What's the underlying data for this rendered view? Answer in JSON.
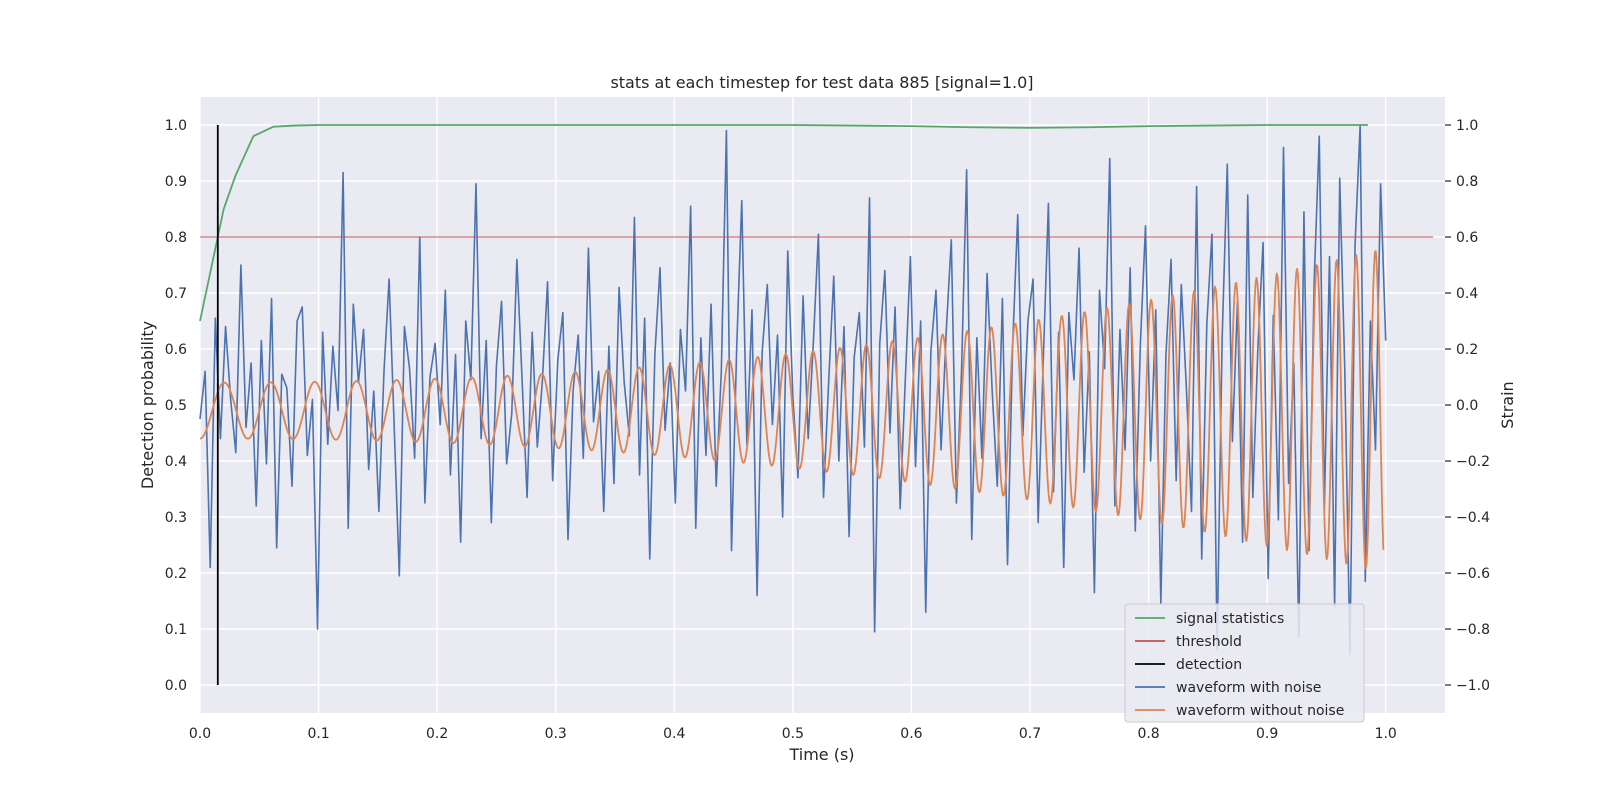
{
  "chart_data": {
    "type": "line",
    "title": "stats at each timestep for test data 885 [signal=1.0]",
    "xlabel": "Time (s)",
    "ylabel_left": "Detection probability",
    "ylabel_right": "Strain",
    "xlim": [
      0.0,
      1.05
    ],
    "ylim_left": [
      -0.05,
      1.05
    ],
    "ylim_right": [
      -1.1,
      1.1
    ],
    "x_ticks": [
      "0.0",
      "0.1",
      "0.2",
      "0.3",
      "0.4",
      "0.5",
      "0.6",
      "0.7",
      "0.8",
      "0.9",
      "1.0"
    ],
    "y_ticks_left": [
      "0.0",
      "0.1",
      "0.2",
      "0.3",
      "0.4",
      "0.5",
      "0.6",
      "0.7",
      "0.8",
      "0.9",
      "1.0"
    ],
    "y_ticks_right": [
      "−1.0",
      "−0.8",
      "−0.6",
      "−0.4",
      "−0.2",
      "0.0",
      "0.2",
      "0.4",
      "0.6",
      "0.8",
      "1.0"
    ],
    "grid": true,
    "legend_position": "lower-right",
    "threshold": 0.8,
    "detection_time": 0.015,
    "colors": {
      "signal_statistics": "#55a868",
      "threshold": "#c44e52",
      "detection": "#000000",
      "waveform_with_noise": "#4c72b0",
      "waveform_without_noise": "#dd8452"
    },
    "series": [
      {
        "name": "signal statistics",
        "axis": "left",
        "x": [
          0.0,
          0.005,
          0.01,
          0.015,
          0.02,
          0.025,
          0.03,
          0.045,
          0.062,
          0.08,
          0.1,
          0.2,
          0.3,
          0.4,
          0.5,
          0.55,
          0.6,
          0.65,
          0.7,
          0.75,
          0.8,
          0.85,
          0.9,
          0.95,
          0.985
        ],
        "values": [
          0.65,
          0.7,
          0.75,
          0.8,
          0.85,
          0.88,
          0.91,
          0.98,
          0.997,
          0.999,
          1.0,
          1.0,
          1.0,
          1.0,
          1.0,
          0.999,
          0.998,
          0.996,
          0.995,
          0.996,
          0.998,
          0.999,
          1.0,
          1.0,
          1.0
        ]
      },
      {
        "name": "threshold",
        "axis": "left",
        "x": [
          0.0,
          1.04
        ],
        "values": [
          0.8,
          0.8
        ]
      },
      {
        "name": "detection",
        "axis": "left",
        "x": [
          0.015,
          0.015
        ],
        "values": [
          0.0,
          1.0
        ]
      },
      {
        "name": "waveform with noise",
        "axis": "right",
        "x_start": 0.0,
        "x_end": 1.0,
        "values": [
          -0.05,
          0.12,
          -0.58,
          0.31,
          -0.12,
          0.28,
          0.02,
          -0.17,
          0.5,
          -0.08,
          0.15,
          -0.36,
          0.23,
          -0.21,
          0.38,
          -0.51,
          0.11,
          0.06,
          -0.29,
          0.3,
          0.35,
          -0.18,
          0.02,
          -0.8,
          0.26,
          -0.14,
          0.21,
          -0.02,
          0.83,
          -0.44,
          0.36,
          0.08,
          0.27,
          -0.23,
          0.05,
          -0.38,
          0.12,
          0.45,
          -0.08,
          -0.61,
          0.28,
          0.13,
          -0.19,
          0.6,
          -0.35,
          0.1,
          0.22,
          -0.07,
          0.41,
          -0.25,
          0.18,
          -0.49,
          0.3,
          0.09,
          0.79,
          -0.12,
          0.23,
          -0.42,
          0.14,
          0.37,
          -0.21,
          -0.03,
          0.52,
          0.1,
          -0.33,
          0.26,
          -0.15,
          0.09,
          0.44,
          -0.27,
          0.16,
          0.33,
          -0.48,
          0.05,
          0.25,
          -0.19,
          0.56,
          -0.06,
          0.12,
          -0.38,
          0.21,
          -0.28,
          0.42,
          0.08,
          -0.11,
          0.67,
          -0.25,
          0.31,
          -0.55,
          0.18,
          0.49,
          -0.09,
          0.15,
          -0.35,
          0.27,
          0.05,
          0.71,
          -0.44,
          0.24,
          -0.18,
          0.36,
          -0.29,
          0.12,
          0.98,
          -0.52,
          0.2,
          0.73,
          -0.14,
          0.34,
          -0.68,
          0.19,
          0.43,
          -0.07,
          0.25,
          -0.4,
          0.55,
          0.03,
          -0.26,
          0.39,
          -0.12,
          0.22,
          0.61,
          -0.33,
          0.08,
          0.46,
          -0.2,
          0.28,
          -0.47,
          0.17,
          0.33,
          -0.15,
          0.74,
          -0.81,
          0.22,
          0.48,
          -0.1,
          0.35,
          -0.37,
          0.09,
          0.53,
          -0.22,
          0.3,
          -0.74,
          0.19,
          0.41,
          -0.16,
          0.26,
          0.59,
          -0.35,
          0.12,
          0.84,
          -0.48,
          0.24,
          -0.19,
          0.47,
          0.05,
          -0.29,
          0.38,
          -0.57,
          0.21,
          0.68,
          -0.11,
          0.3,
          0.45,
          -0.42,
          0.16,
          0.72,
          -0.31,
          0.26,
          -0.58,
          0.33,
          0.09,
          0.56,
          -0.24,
          0.19,
          -0.67,
          0.41,
          0.13,
          0.88,
          -0.36,
          0.27,
          -0.16,
          0.49,
          -0.45,
          0.22,
          0.64,
          -0.2,
          0.34,
          -0.71,
          0.18,
          0.52,
          -0.27,
          0.43,
          0.06,
          -0.38,
          0.78,
          -0.55,
          0.29,
          0.61,
          -0.87,
          0.24,
          0.86,
          -0.13,
          0.37,
          -0.49,
          0.75,
          -0.33,
          0.21,
          0.58,
          -0.62,
          0.32,
          -0.41,
          0.92,
          -0.28,
          0.15,
          -0.83,
          0.69,
          -0.52,
          0.44,
          0.96,
          -0.37,
          0.53,
          -0.72,
          0.81,
          0.12,
          -0.89,
          0.57,
          1.0,
          -0.63,
          0.3,
          -0.16,
          0.79,
          0.23
        ]
      },
      {
        "name": "waveform without noise",
        "axis": "right",
        "x_start": 0.0,
        "x_end": 0.998,
        "chirp": {
          "start_amplitude": 0.1,
          "end_amplitude": 0.58,
          "start_cycles_per_second": 24,
          "end_cycles_per_second": 62,
          "offset": -0.02
        }
      }
    ]
  }
}
